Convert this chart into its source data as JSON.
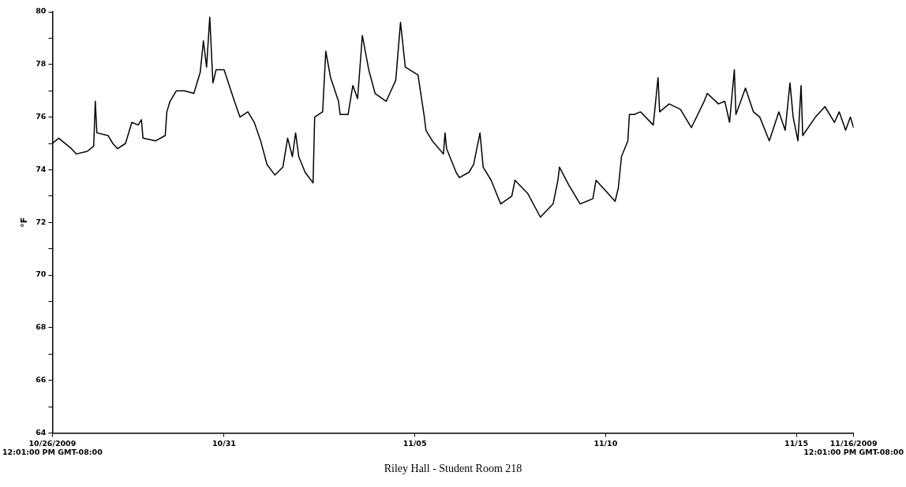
{
  "chart_data": {
    "type": "line",
    "xlabel": "Riley Hall - Student Room 218",
    "ylabel": "°F",
    "x": [
      "2009-10-26T12:01",
      "2009-10-26T16:00",
      "2009-10-27T00:00",
      "2009-10-27T03:00",
      "2009-10-27T10:00",
      "2009-10-27T14:00",
      "2009-10-27T15:00",
      "2009-10-27T16:00",
      "2009-10-27T23:00",
      "2009-10-28T02:00",
      "2009-10-28T05:00",
      "2009-10-28T10:00",
      "2009-10-28T14:00",
      "2009-10-28T18:00",
      "2009-10-28T20:00",
      "2009-10-28T21:00",
      "2009-10-29T05:00",
      "2009-10-29T11:00",
      "2009-10-29T12:00",
      "2009-10-29T14:00",
      "2009-10-29T18:00",
      "2009-10-29T23:00",
      "2009-10-30T05:00",
      "2009-10-30T09:00",
      "2009-10-30T11:00",
      "2009-10-30T13:00",
      "2009-10-30T15:00",
      "2009-10-30T17:00",
      "2009-10-30T19:00",
      "2009-10-31T00:00",
      "2009-10-31T06:00",
      "2009-10-31T10:00",
      "2009-10-31T15:00",
      "2009-10-31T19:00",
      "2009-10-31T23:00",
      "2009-11-01T03:00",
      "2009-11-01T08:00",
      "2009-11-01T13:00",
      "2009-11-01T16:00",
      "2009-11-01T19:00",
      "2009-11-01T21:00",
      "2009-11-01T23:00",
      "2009-11-02T03:00",
      "2009-11-02T08:00",
      "2009-11-02T09:00",
      "2009-11-02T14:00",
      "2009-11-02T16:00",
      "2009-11-02T19:00",
      "2009-11-03T00:00",
      "2009-11-03T01:00",
      "2009-11-03T06:00",
      "2009-11-03T09:00",
      "2009-11-03T12:00",
      "2009-11-03T15:00",
      "2009-11-03T19:00",
      "2009-11-03T23:00",
      "2009-11-04T06:00",
      "2009-11-04T12:00",
      "2009-11-04T15:00",
      "2009-11-04T18:00",
      "2009-11-05T02:00",
      "2009-11-05T06:00",
      "2009-11-05T07:00",
      "2009-11-05T11:00",
      "2009-11-05T18:00",
      "2009-11-05T19:00",
      "2009-11-05T20:00",
      "2009-11-06T02:00",
      "2009-11-06T04:00",
      "2009-11-06T10:00",
      "2009-11-06T13:00",
      "2009-11-06T17:00",
      "2009-11-06T19:00",
      "2009-11-07T00:00",
      "2009-11-07T06:00",
      "2009-11-07T13:00",
      "2009-11-07T15:00",
      "2009-11-07T23:00",
      "2009-11-08T07:00",
      "2009-11-08T15:00",
      "2009-11-08T18:00",
      "2009-11-08T19:00",
      "2009-11-09T01:00",
      "2009-11-09T08:00",
      "2009-11-09T16:00",
      "2009-11-09T18:00",
      "2009-11-10T00:00",
      "2009-11-10T06:00",
      "2009-11-10T08:00",
      "2009-11-10T10:00",
      "2009-11-10T14:00",
      "2009-11-10T15:00",
      "2009-11-10T18:00",
      "2009-11-10T22:00",
      "2009-11-11T06:00",
      "2009-11-11T09:00",
      "2009-11-11T10:00",
      "2009-11-11T16:00",
      "2009-11-11T23:00",
      "2009-11-12T06:00",
      "2009-11-12T14:00",
      "2009-11-12T16:00",
      "2009-11-12T23:00",
      "2009-11-13T03:00",
      "2009-11-13T06:00",
      "2009-11-13T09:00",
      "2009-11-13T10:00",
      "2009-11-13T16:00",
      "2009-11-13T21:00",
      "2009-11-14T01:00",
      "2009-11-14T07:00",
      "2009-11-14T13:00",
      "2009-11-14T17:00",
      "2009-11-14T20:00",
      "2009-11-14T22:00",
      "2009-11-15T01:00",
      "2009-11-15T03:00",
      "2009-11-15T04:00",
      "2009-11-15T12:00",
      "2009-11-15T18:00",
      "2009-11-16T00:00",
      "2009-11-16T03:00",
      "2009-11-16T07:00",
      "2009-11-16T10:00",
      "2009-11-16T12:01"
    ],
    "series": [
      {
        "color": "#000000",
        "values": [
          75.0,
          75.2,
          74.8,
          74.6,
          74.7,
          74.9,
          76.6,
          75.4,
          75.3,
          75.0,
          74.8,
          75.0,
          75.8,
          75.7,
          75.9,
          75.2,
          75.1,
          75.3,
          76.2,
          76.6,
          77.0,
          77.0,
          76.9,
          77.7,
          78.9,
          77.9,
          79.8,
          77.3,
          77.8,
          77.8,
          76.7,
          76.0,
          76.2,
          75.8,
          75.1,
          74.2,
          73.8,
          74.1,
          75.2,
          74.5,
          75.4,
          74.5,
          73.9,
          73.5,
          76.0,
          76.2,
          78.5,
          77.5,
          76.6,
          76.1,
          76.1,
          77.2,
          76.7,
          79.1,
          77.8,
          76.9,
          76.6,
          77.4,
          79.6,
          77.9,
          77.6,
          76.0,
          75.5,
          75.1,
          74.6,
          75.4,
          74.8,
          73.9,
          73.7,
          73.9,
          74.2,
          75.4,
          74.1,
          73.6,
          72.7,
          73.0,
          73.6,
          73.1,
          72.2,
          72.7,
          73.6,
          74.1,
          73.4,
          72.7,
          72.9,
          73.6,
          73.2,
          72.8,
          73.3,
          74.5,
          75.1,
          76.1,
          76.1,
          76.2,
          75.7,
          77.5,
          76.2,
          76.5,
          76.3,
          75.6,
          76.6,
          76.9,
          76.5,
          76.6,
          75.8,
          77.8,
          76.1,
          77.1,
          76.2,
          76.0,
          75.1,
          76.2,
          75.5,
          77.3,
          76.0,
          75.1,
          77.2,
          75.3,
          76.0,
          76.4,
          75.8,
          76.2,
          75.5,
          76.0,
          75.6
        ]
      }
    ],
    "xlim": [
      "2009-10-26T12:01",
      "2009-11-16T12:01"
    ],
    "xticks": [
      {
        "value": "2009-10-26T12:01",
        "label": "10/26/2009 12:01:00 PM GMT-08:00"
      },
      {
        "value": "2009-10-31",
        "label": "10/31"
      },
      {
        "value": "2009-11-05",
        "label": "11/05"
      },
      {
        "value": "2009-11-10",
        "label": "11/10"
      },
      {
        "value": "2009-11-15",
        "label": "11/15"
      },
      {
        "value": "2009-11-16T12:01",
        "label": "11/16/2009 12:01:00 PM GMT-08:00"
      }
    ],
    "ylim": [
      64,
      80
    ],
    "yticks": [
      64,
      {
        "value": 65,
        "label": null
      },
      66,
      {
        "value": 67,
        "label": null
      },
      68,
      {
        "value": 69,
        "label": null
      },
      70,
      {
        "value": 71,
        "label": null
      },
      72,
      {
        "value": 73,
        "label": null
      },
      74,
      {
        "value": 75,
        "label": null
      },
      76,
      {
        "value": 77,
        "label": null
      },
      78,
      {
        "value": 79,
        "label": null
      },
      80
    ],
    "grid": false,
    "legend": false,
    "marker": "none",
    "line_style": "solid"
  }
}
